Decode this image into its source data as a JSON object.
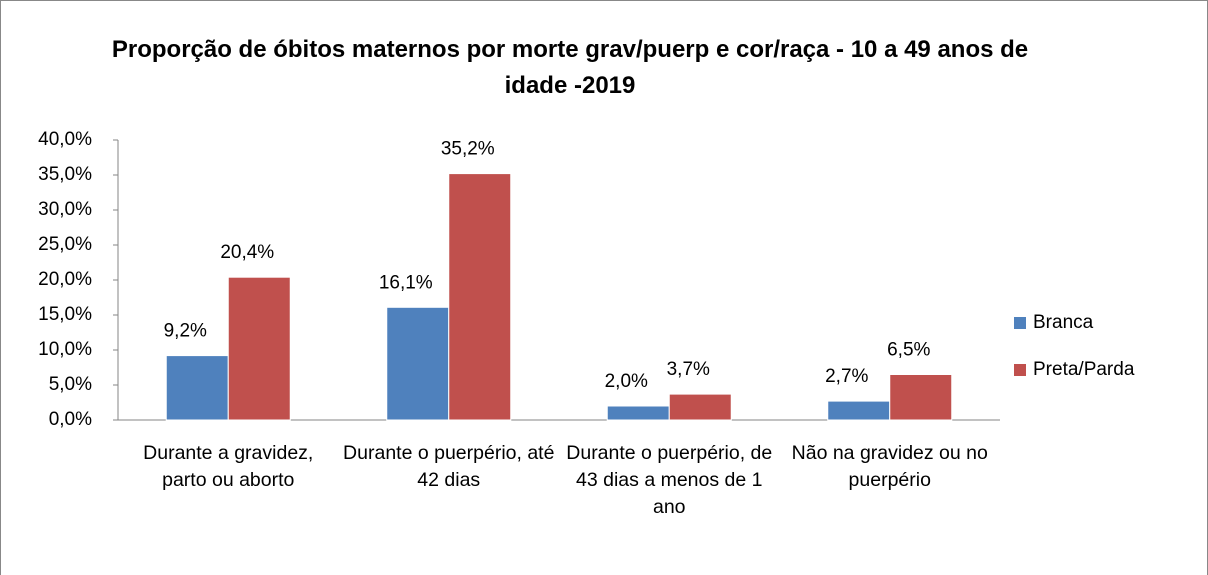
{
  "chart_data": {
    "type": "bar",
    "title": "Proporção de óbitos maternos por morte grav/puerp e cor/raça - 10 a 49 anos de idade  -2019",
    "categories": [
      "Durante a gravidez, parto ou aborto",
      "Durante o puerpério, até 42 dias",
      "Durante o puerpério, de 43 dias a menos de 1 ano",
      "Não na gravidez ou no puerpério"
    ],
    "series": [
      {
        "name": "Branca",
        "color": "#4f81bd",
        "values": [
          9.2,
          16.1,
          2.0,
          2.7
        ],
        "value_labels": [
          "9,2%",
          "16,1%",
          "2,0%",
          "2,7%"
        ]
      },
      {
        "name": "Preta/Parda",
        "color": "#c0504d",
        "values": [
          20.4,
          35.2,
          3.7,
          6.5
        ],
        "value_labels": [
          "20,4%",
          "35,2%",
          "3,7%",
          "6,5%"
        ]
      }
    ],
    "ylim": [
      0,
      40
    ],
    "yticks": [
      {
        "value": 0,
        "label": "0,0%"
      },
      {
        "value": 5,
        "label": "5,0%"
      },
      {
        "value": 10,
        "label": "10,0%"
      },
      {
        "value": 15,
        "label": "15,0%"
      },
      {
        "value": 20,
        "label": "20,0%"
      },
      {
        "value": 25,
        "label": "25,0%"
      },
      {
        "value": 30,
        "label": "30,0%"
      },
      {
        "value": 35,
        "label": "35,0%"
      },
      {
        "value": 40,
        "label": "40,0%"
      }
    ],
    "legend": "right",
    "grid": false
  }
}
